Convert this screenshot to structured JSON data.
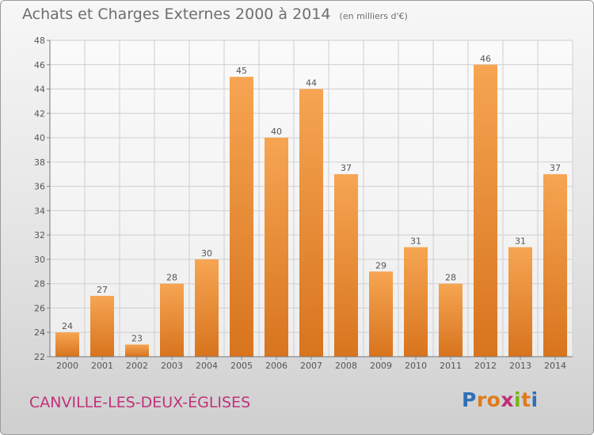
{
  "header": {
    "title": "Achats et Charges Externes 2000 à 2014",
    "unit": "(en milliers d'€)"
  },
  "footer": {
    "commune": "CANVILLE-LES-DEUX-ÉGLISES",
    "logo_letters": [
      "P",
      "r",
      "o",
      "x",
      "i",
      "t",
      "i"
    ],
    "logo_colors": [
      "#2f6fb5",
      "#e07a1c",
      "#e07a1c",
      "#c02c75",
      "#79b31d",
      "#e07a1c",
      "#2f6fb5"
    ]
  },
  "colors": {
    "bar_light": "#f6a552",
    "bar_dark": "#d8741e",
    "text": "#555555",
    "grid": "#cfcfcf"
  },
  "chart_data": {
    "type": "bar",
    "categories": [
      "2000",
      "2001",
      "2002",
      "2003",
      "2004",
      "2005",
      "2006",
      "2007",
      "2008",
      "2009",
      "2010",
      "2011",
      "2012",
      "2013",
      "2014"
    ],
    "values": [
      24,
      27,
      23,
      28,
      30,
      45,
      40,
      44,
      37,
      29,
      31,
      28,
      46,
      31,
      37
    ],
    "title": "Achats et Charges Externes 2000 à 2014",
    "ylim": [
      22,
      48
    ],
    "yticks": [
      22,
      24,
      26,
      28,
      30,
      32,
      34,
      36,
      38,
      40,
      42,
      44,
      46,
      48
    ],
    "grid": true,
    "data_labels": true
  }
}
